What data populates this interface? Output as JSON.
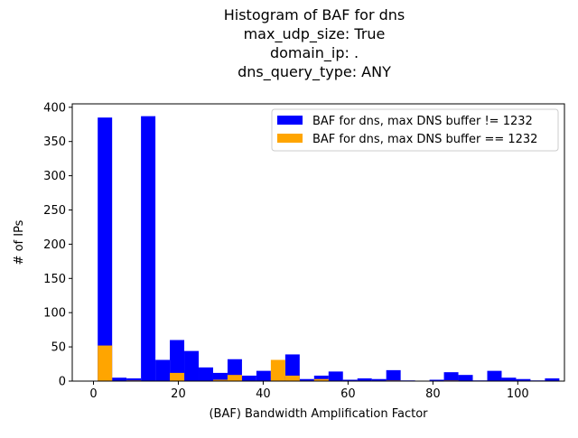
{
  "chart_data": {
    "type": "bar",
    "title_lines": [
      "Histogram of BAF for dns",
      "max_udp_size: True",
      "domain_ip: .",
      "dns_query_type: ANY"
    ],
    "xlabel": "(BAF) Bandwidth Amplification Factor",
    "ylabel": "# of IPs",
    "xlim": [
      -5,
      111
    ],
    "ylim": [
      0,
      405
    ],
    "xticks": [
      0,
      20,
      40,
      60,
      80,
      100
    ],
    "yticks": [
      0,
      50,
      100,
      150,
      200,
      250,
      300,
      350,
      400
    ],
    "grid": false,
    "legend_position": "top-right",
    "bin_width": 3.4,
    "series": [
      {
        "name": "BAF for dns, max DNS buffer != 1232",
        "color": "#0000ff",
        "bins": [
          [
            1.0,
            385
          ],
          [
            4.4,
            5
          ],
          [
            7.8,
            4
          ],
          [
            11.2,
            387
          ],
          [
            14.6,
            31
          ],
          [
            18.0,
            60
          ],
          [
            21.4,
            44
          ],
          [
            24.8,
            20
          ],
          [
            28.2,
            12
          ],
          [
            31.6,
            32
          ],
          [
            35.0,
            8
          ],
          [
            38.4,
            15
          ],
          [
            41.8,
            7
          ],
          [
            45.2,
            39
          ],
          [
            48.6,
            3
          ],
          [
            52.0,
            8
          ],
          [
            55.4,
            14
          ],
          [
            58.8,
            2
          ],
          [
            62.2,
            4
          ],
          [
            65.6,
            3
          ],
          [
            69.0,
            16
          ],
          [
            72.4,
            1
          ],
          [
            75.8,
            0
          ],
          [
            79.2,
            2
          ],
          [
            82.6,
            13
          ],
          [
            86.0,
            9
          ],
          [
            89.4,
            1
          ],
          [
            92.8,
            15
          ],
          [
            96.2,
            5
          ],
          [
            99.6,
            3
          ],
          [
            103.0,
            1
          ],
          [
            106.4,
            4
          ]
        ]
      },
      {
        "name": "BAF for dns, max DNS buffer == 1232",
        "color": "#ffa500",
        "bins": [
          [
            1.0,
            52
          ],
          [
            7.8,
            1
          ],
          [
            18.0,
            12
          ],
          [
            28.2,
            2
          ],
          [
            31.6,
            9
          ],
          [
            41.8,
            31
          ],
          [
            45.2,
            8
          ],
          [
            52.0,
            3
          ],
          [
            69.0,
            1
          ],
          [
            82.6,
            1
          ]
        ]
      }
    ]
  }
}
